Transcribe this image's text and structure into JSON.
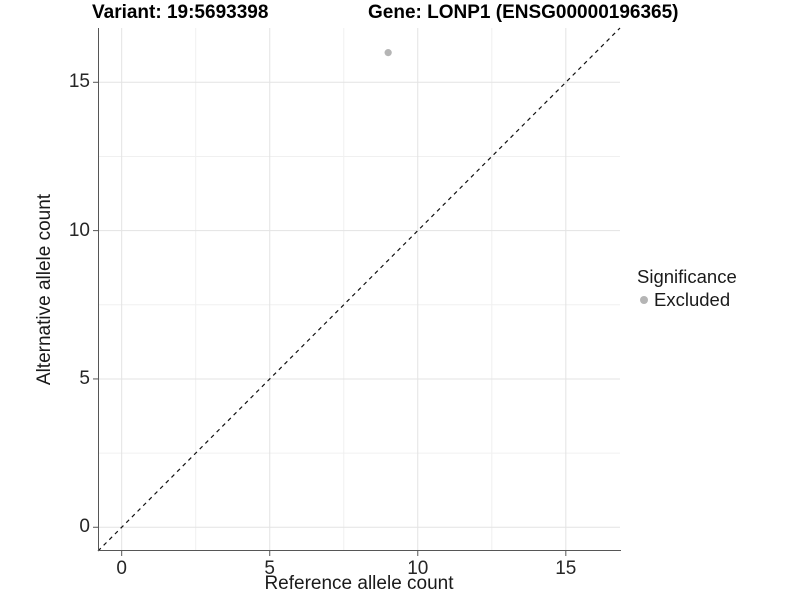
{
  "chart_data": {
    "type": "scatter",
    "titles": {
      "left": "Variant: 19:5693398",
      "right": "Gene: LONP1 (ENSG00000196365)"
    },
    "xlabel": "Reference allele count",
    "ylabel": "Alternative allele count",
    "xlim": [
      -0.8,
      16.83
    ],
    "ylim": [
      -0.8,
      16.83
    ],
    "x_ticks": [
      0,
      5,
      10,
      15
    ],
    "y_ticks": [
      0,
      5,
      10,
      15
    ],
    "x_minor_ticks": [
      2.5,
      7.5,
      12.5
    ],
    "y_minor_ticks": [
      2.5,
      7.5,
      12.5
    ],
    "grid": "major and minor gridlines, white background",
    "identity_line": {
      "equation": "y = x",
      "style": "dashed",
      "color": "#111111"
    },
    "series": [
      {
        "name": "Excluded",
        "color": "#b5b5b5",
        "points": [
          {
            "x": 9,
            "y": 16
          }
        ]
      }
    ],
    "legend": {
      "title": "Significance",
      "position": "right",
      "entries": [
        {
          "label": "Excluded",
          "color": "#b5b5b5"
        }
      ]
    },
    "style_colors": {
      "grid_major": "#e3e3e3",
      "grid_minor": "#f0f0f0",
      "axis_line": "#565656",
      "tick_text": "#262626"
    }
  }
}
